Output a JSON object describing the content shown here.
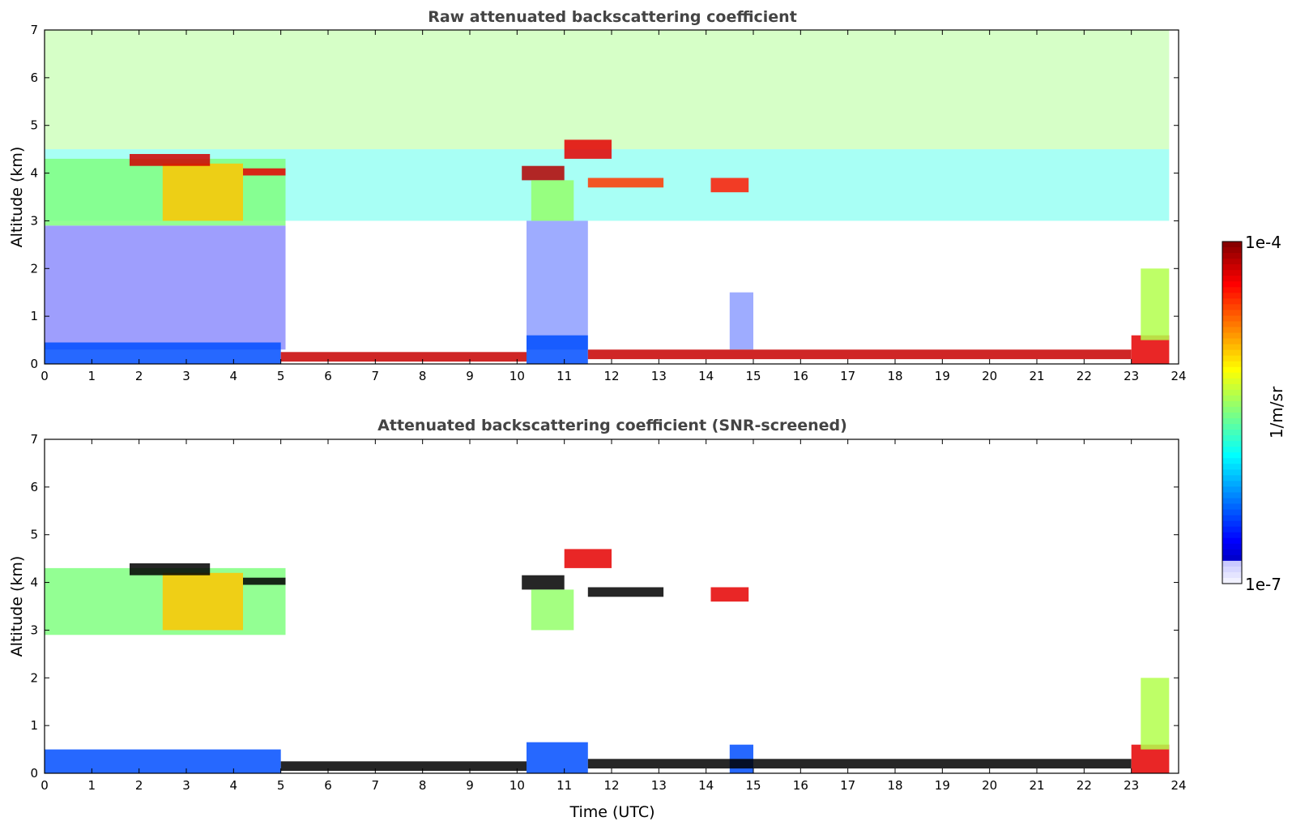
{
  "chart_data": [
    {
      "type": "heatmap",
      "title": "Raw attenuated backscattering coefficient",
      "xlabel": "",
      "ylabel": "Altitude (km)",
      "xlim": [
        0,
        24
      ],
      "ylim": [
        0,
        7
      ],
      "xticks": [
        "0",
        "1",
        "2",
        "3",
        "4",
        "5",
        "6",
        "7",
        "8",
        "9",
        "10",
        "11",
        "12",
        "13",
        "14",
        "15",
        "16",
        "17",
        "18",
        "19",
        "20",
        "21",
        "22",
        "23",
        "24"
      ],
      "yticks": [
        "0",
        "1",
        "2",
        "3",
        "4",
        "5",
        "6",
        "7"
      ],
      "screened": false,
      "features": [
        {
          "kind": "noise",
          "t": [
            0,
            23.8
          ],
          "alt": [
            4.5,
            7.0
          ],
          "level": 0.52
        },
        {
          "kind": "noise",
          "t": [
            0,
            23.8
          ],
          "alt": [
            3.0,
            4.5
          ],
          "level": 0.4
        },
        {
          "kind": "noise",
          "t": [
            0,
            5.1
          ],
          "alt": [
            0.3,
            2.9
          ],
          "level": 0.12
        },
        {
          "kind": "noise",
          "t": [
            10.2,
            11.5
          ],
          "alt": [
            0.3,
            3.0
          ],
          "level": 0.16
        },
        {
          "kind": "noise",
          "t": [
            14.5,
            15.0
          ],
          "alt": [
            0.3,
            1.5
          ],
          "level": 0.16
        },
        {
          "kind": "layer",
          "t": [
            0,
            5.1
          ],
          "alt": [
            2.9,
            4.3
          ],
          "level": 0.5
        },
        {
          "kind": "layer",
          "t": [
            2.5,
            4.2
          ],
          "alt": [
            3.0,
            4.2
          ],
          "level": 0.68
        },
        {
          "kind": "layer",
          "t": [
            1.8,
            3.5
          ],
          "alt": [
            4.15,
            4.4
          ],
          "level": 0.92
        },
        {
          "kind": "layer",
          "t": [
            4.2,
            5.1
          ],
          "alt": [
            3.95,
            4.1
          ],
          "level": 0.9
        },
        {
          "kind": "layer",
          "t": [
            10.1,
            11.0
          ],
          "alt": [
            3.85,
            4.15
          ],
          "level": 0.95
        },
        {
          "kind": "layer",
          "t": [
            11.0,
            12.0
          ],
          "alt": [
            4.3,
            4.7
          ],
          "level": 0.9
        },
        {
          "kind": "layer",
          "t": [
            10.3,
            11.2
          ],
          "alt": [
            3.0,
            3.85
          ],
          "level": 0.52
        },
        {
          "kind": "layer",
          "t": [
            11.5,
            13.1
          ],
          "alt": [
            3.7,
            3.9
          ],
          "level": 0.82
        },
        {
          "kind": "layer",
          "t": [
            14.1,
            14.9
          ],
          "alt": [
            3.6,
            3.9
          ],
          "level": 0.85
        },
        {
          "kind": "layer",
          "t": [
            0,
            5.0
          ],
          "alt": [
            0,
            0.45
          ],
          "level": 0.2
        },
        {
          "kind": "layer",
          "t": [
            10.2,
            11.5
          ],
          "alt": [
            0,
            0.6
          ],
          "level": 0.2
        },
        {
          "kind": "layer",
          "t": [
            5.0,
            10.2
          ],
          "alt": [
            0.05,
            0.25
          ],
          "level": 0.93
        },
        {
          "kind": "layer",
          "t": [
            11.5,
            23.0
          ],
          "alt": [
            0.1,
            0.3
          ],
          "level": 0.93
        },
        {
          "kind": "layer",
          "t": [
            23.0,
            23.8
          ],
          "alt": [
            0,
            0.6
          ],
          "level": 0.9
        },
        {
          "kind": "layer",
          "t": [
            23.2,
            23.8
          ],
          "alt": [
            0.5,
            2.0
          ],
          "level": 0.55
        }
      ]
    },
    {
      "type": "heatmap",
      "title": "Attenuated backscattering coefficient (SNR-screened)",
      "xlabel": "Time (UTC)",
      "ylabel": "Altitude (km)",
      "xlim": [
        0,
        24
      ],
      "ylim": [
        0,
        7
      ],
      "xticks": [
        "0",
        "1",
        "2",
        "3",
        "4",
        "5",
        "6",
        "7",
        "8",
        "9",
        "10",
        "11",
        "12",
        "13",
        "14",
        "15",
        "16",
        "17",
        "18",
        "19",
        "20",
        "21",
        "22",
        "23",
        "24"
      ],
      "yticks": [
        "0",
        "1",
        "2",
        "3",
        "4",
        "5",
        "6",
        "7"
      ],
      "screened": true,
      "features": [
        {
          "kind": "layer",
          "t": [
            0,
            5.1
          ],
          "alt": [
            2.9,
            4.3
          ],
          "level": 0.5
        },
        {
          "kind": "layer",
          "t": [
            2.5,
            4.2
          ],
          "alt": [
            3.0,
            4.2
          ],
          "level": 0.68
        },
        {
          "kind": "layer",
          "t": [
            1.8,
            3.5
          ],
          "alt": [
            4.15,
            4.4
          ],
          "level": 1.0
        },
        {
          "kind": "layer",
          "t": [
            4.2,
            5.1
          ],
          "alt": [
            3.95,
            4.1
          ],
          "level": 1.0
        },
        {
          "kind": "layer",
          "t": [
            10.1,
            11.0
          ],
          "alt": [
            3.85,
            4.15
          ],
          "level": 1.0
        },
        {
          "kind": "layer",
          "t": [
            11.0,
            12.0
          ],
          "alt": [
            4.3,
            4.7
          ],
          "level": 0.9
        },
        {
          "kind": "layer",
          "t": [
            10.3,
            11.2
          ],
          "alt": [
            3.0,
            3.85
          ],
          "level": 0.52
        },
        {
          "kind": "layer",
          "t": [
            11.5,
            13.1
          ],
          "alt": [
            3.7,
            3.9
          ],
          "level": 1.0
        },
        {
          "kind": "layer",
          "t": [
            14.1,
            14.9
          ],
          "alt": [
            3.6,
            3.9
          ],
          "level": 0.9
        },
        {
          "kind": "layer",
          "t": [
            0,
            5.0
          ],
          "alt": [
            0,
            0.5
          ],
          "level": 0.2
        },
        {
          "kind": "layer",
          "t": [
            10.2,
            11.5
          ],
          "alt": [
            0,
            0.65
          ],
          "level": 0.2
        },
        {
          "kind": "layer",
          "t": [
            14.5,
            15.0
          ],
          "alt": [
            0,
            0.6
          ],
          "level": 0.2
        },
        {
          "kind": "layer",
          "t": [
            5.0,
            10.2
          ],
          "alt": [
            0.05,
            0.25
          ],
          "level": 1.0
        },
        {
          "kind": "layer",
          "t": [
            11.5,
            23.0
          ],
          "alt": [
            0.1,
            0.3
          ],
          "level": 1.0
        },
        {
          "kind": "layer",
          "t": [
            23.0,
            23.8
          ],
          "alt": [
            0,
            0.6
          ],
          "level": 0.9
        },
        {
          "kind": "layer",
          "t": [
            23.2,
            23.8
          ],
          "alt": [
            0.5,
            2.0
          ],
          "level": 0.55
        }
      ]
    }
  ],
  "colorbar": {
    "max_label": "1e-4",
    "min_label": "1e-7",
    "label": "1/m/sr",
    "colormap": "jet",
    "scale": "log",
    "range": [
      1e-07,
      0.0001
    ]
  }
}
